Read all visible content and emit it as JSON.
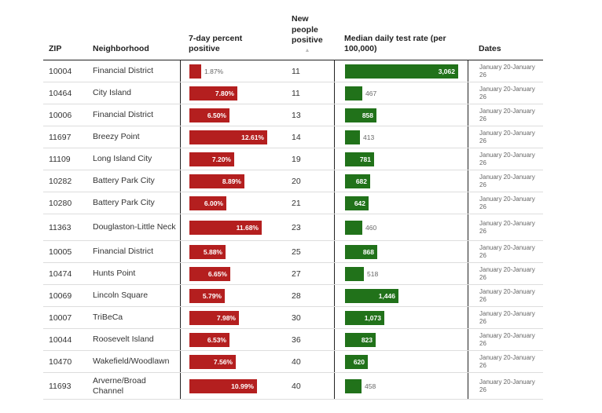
{
  "headers": {
    "zip": "ZIP",
    "neighborhood": "Neighborhood",
    "pct_positive": "7-day percent positive",
    "new_positive": "New people positive",
    "test_rate": "Median daily test rate (per 100,000)",
    "dates": "Dates"
  },
  "sort_icon": "▲",
  "colors": {
    "percent_bar": "#b41f1f",
    "rate_bar": "#21721a"
  },
  "scales": {
    "pct_max": 14.0,
    "rate_max": 3200
  },
  "rows": [
    {
      "zip": "10004",
      "neighborhood": "Financial District",
      "pct": 1.87,
      "pct_label": "1.87%",
      "new_positive": "11",
      "rate": 3062,
      "rate_label": "3,062",
      "dates": "January 20-January 26"
    },
    {
      "zip": "10464",
      "neighborhood": "City Island",
      "pct": 7.8,
      "pct_label": "7.80%",
      "new_positive": "11",
      "rate": 467,
      "rate_label": "467",
      "dates": "January 20-January 26"
    },
    {
      "zip": "10006",
      "neighborhood": "Financial District",
      "pct": 6.5,
      "pct_label": "6.50%",
      "new_positive": "13",
      "rate": 858,
      "rate_label": "858",
      "dates": "January 20-January 26"
    },
    {
      "zip": "11697",
      "neighborhood": "Breezy Point",
      "pct": 12.61,
      "pct_label": "12.61%",
      "new_positive": "14",
      "rate": 413,
      "rate_label": "413",
      "dates": "January 20-January 26"
    },
    {
      "zip": "11109",
      "neighborhood": "Long Island City",
      "pct": 7.2,
      "pct_label": "7.20%",
      "new_positive": "19",
      "rate": 781,
      "rate_label": "781",
      "dates": "January 20-January 26"
    },
    {
      "zip": "10282",
      "neighborhood": "Battery Park City",
      "pct": 8.89,
      "pct_label": "8.89%",
      "new_positive": "20",
      "rate": 682,
      "rate_label": "682",
      "dates": "January 20-January 26"
    },
    {
      "zip": "10280",
      "neighborhood": "Battery Park City",
      "pct": 6.0,
      "pct_label": "6.00%",
      "new_positive": "21",
      "rate": 642,
      "rate_label": "642",
      "dates": "January 20-January 26"
    },
    {
      "zip": "11363",
      "neighborhood": "Douglaston-Little Neck",
      "pct": 11.68,
      "pct_label": "11.68%",
      "new_positive": "23",
      "rate": 460,
      "rate_label": "460",
      "dates": "January 20-January 26"
    },
    {
      "zip": "10005",
      "neighborhood": "Financial District",
      "pct": 5.88,
      "pct_label": "5.88%",
      "new_positive": "25",
      "rate": 868,
      "rate_label": "868",
      "dates": "January 20-January 26"
    },
    {
      "zip": "10474",
      "neighborhood": "Hunts Point",
      "pct": 6.65,
      "pct_label": "6.65%",
      "new_positive": "27",
      "rate": 518,
      "rate_label": "518",
      "dates": "January 20-January 26"
    },
    {
      "zip": "10069",
      "neighborhood": "Lincoln Square",
      "pct": 5.79,
      "pct_label": "5.79%",
      "new_positive": "28",
      "rate": 1446,
      "rate_label": "1,446",
      "dates": "January 20-January 26"
    },
    {
      "zip": "10007",
      "neighborhood": "TriBeCa",
      "pct": 7.98,
      "pct_label": "7.98%",
      "new_positive": "30",
      "rate": 1073,
      "rate_label": "1,073",
      "dates": "January 20-January 26"
    },
    {
      "zip": "10044",
      "neighborhood": "Roosevelt Island",
      "pct": 6.53,
      "pct_label": "6.53%",
      "new_positive": "36",
      "rate": 823,
      "rate_label": "823",
      "dates": "January 20-January 26"
    },
    {
      "zip": "10470",
      "neighborhood": "Wakefield/Woodlawn",
      "pct": 7.56,
      "pct_label": "7.56%",
      "new_positive": "40",
      "rate": 620,
      "rate_label": "620",
      "dates": "January 20-January 26"
    },
    {
      "zip": "11693",
      "neighborhood": "Arverne/Broad Channel",
      "pct": 10.99,
      "pct_label": "10.99%",
      "new_positive": "40",
      "rate": 458,
      "rate_label": "458",
      "dates": "January 20-January 26"
    }
  ]
}
